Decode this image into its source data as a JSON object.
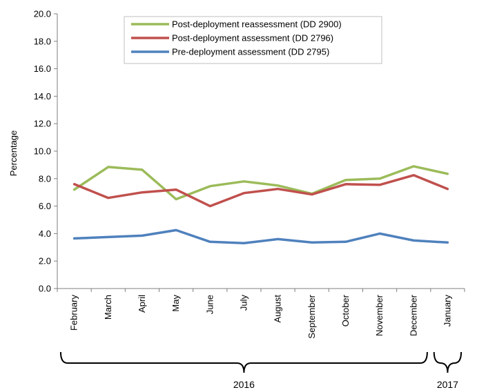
{
  "chart_data": {
    "type": "line",
    "title": "",
    "xlabel": "",
    "ylabel": "Percentage",
    "ylim": [
      0,
      20
    ],
    "yticks": [
      "0.0",
      "2.0",
      "4.0",
      "6.0",
      "8.0",
      "10.0",
      "12.0",
      "14.0",
      "16.0",
      "18.0",
      "20.0"
    ],
    "categories": [
      "February",
      "March",
      "April",
      "May",
      "June",
      "July",
      "August",
      "September",
      "October",
      "November",
      "December",
      "January"
    ],
    "year_groups": [
      {
        "label": "2016",
        "from": 0,
        "to": 10
      },
      {
        "label": "2017",
        "from": 11,
        "to": 11
      }
    ],
    "legend_position": "top-center",
    "grid": false,
    "series": [
      {
        "name": "Post-deployment reassessment (DD 2900)",
        "color": "#9bbb59",
        "values": [
          7.2,
          8.85,
          8.65,
          6.5,
          7.45,
          7.8,
          7.5,
          6.9,
          7.9,
          8.0,
          8.9,
          8.35
        ]
      },
      {
        "name": "Post-deployment assessment (DD 2796)",
        "color": "#c0504d",
        "values": [
          7.6,
          6.6,
          7.0,
          7.2,
          6.0,
          6.95,
          7.25,
          6.85,
          7.6,
          7.55,
          8.25,
          7.25
        ]
      },
      {
        "name": "Pre-deployment assessment (DD 2795)",
        "color": "#4f81bd",
        "values": [
          3.65,
          3.75,
          3.85,
          4.25,
          3.4,
          3.3,
          3.6,
          3.35,
          3.4,
          4.0,
          3.5,
          3.35
        ]
      }
    ]
  }
}
